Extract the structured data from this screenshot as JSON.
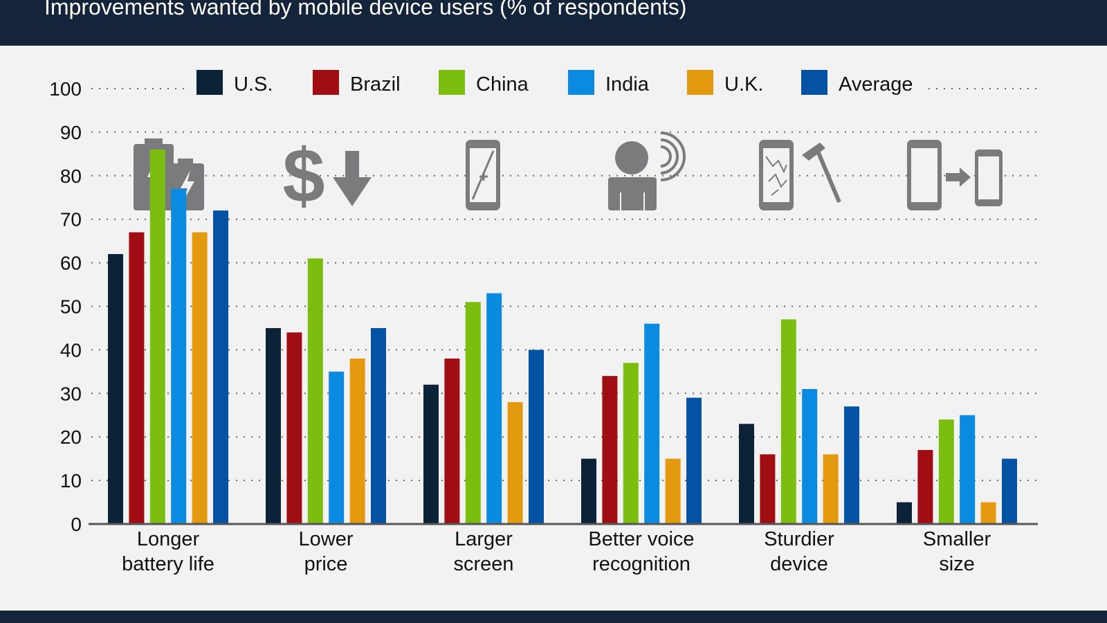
{
  "header": {
    "title": "Improvements wanted by mobile device users (% of respondents)"
  },
  "colors": {
    "header_bg": "#14243a",
    "background": "#f2f2f3",
    "icon": "#7b7b7d"
  },
  "chart_data": {
    "type": "bar",
    "title": "Improvements wanted by mobile device users (% of respondents)",
    "xlabel": "",
    "ylabel": "",
    "ylim": [
      0,
      100
    ],
    "yticks": [
      0,
      10,
      20,
      30,
      40,
      50,
      60,
      70,
      80,
      90,
      100
    ],
    "grid": true,
    "legend_position": "top",
    "categories": [
      [
        "Longer",
        "battery life"
      ],
      [
        "Lower",
        "price"
      ],
      [
        "Larger",
        "screen"
      ],
      [
        "Better voice",
        "recognition"
      ],
      [
        "Sturdier",
        "device"
      ],
      [
        "Smaller",
        "size"
      ]
    ],
    "category_icons": [
      "battery-icon",
      "price-down-icon",
      "larger-screen-icon",
      "voice-recognition-icon",
      "sturdy-device-icon",
      "smaller-size-icon"
    ],
    "series": [
      {
        "name": "U.S.",
        "color": "#0c2236",
        "values": [
          62,
          45,
          32,
          15,
          23,
          5
        ]
      },
      {
        "name": "Brazil",
        "color": "#a00d12",
        "values": [
          67,
          44,
          38,
          34,
          16,
          17
        ]
      },
      {
        "name": "China",
        "color": "#7bbe0f",
        "values": [
          86,
          61,
          51,
          37,
          47,
          24
        ]
      },
      {
        "name": "India",
        "color": "#0a8ae0",
        "values": [
          77,
          35,
          53,
          46,
          31,
          25
        ]
      },
      {
        "name": "U.K.",
        "color": "#e39a0f",
        "values": [
          67,
          38,
          28,
          15,
          16,
          5
        ]
      },
      {
        "name": "Average",
        "color": "#0452a3",
        "values": [
          72,
          45,
          40,
          29,
          27,
          15
        ]
      }
    ]
  }
}
